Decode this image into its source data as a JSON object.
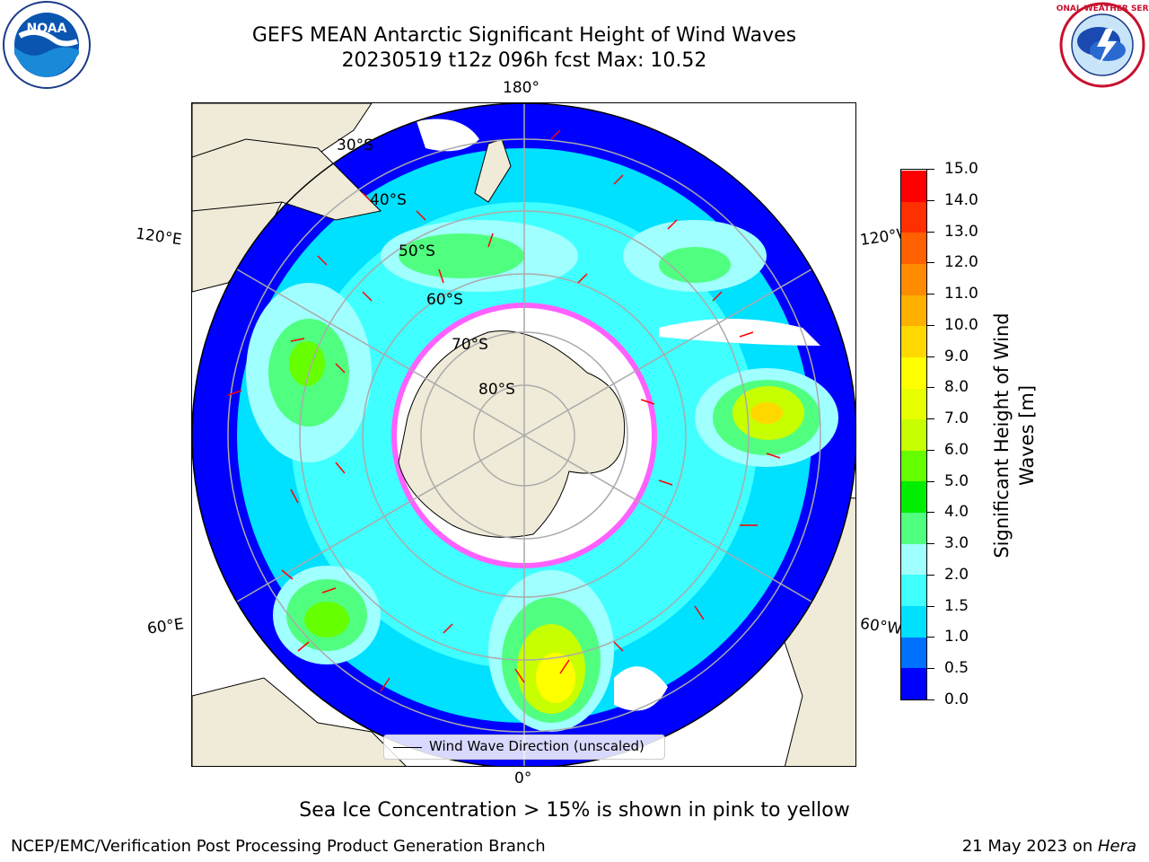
{
  "title": {
    "line1": "GEFS MEAN Antarctic Significant Height of Wind Waves",
    "line2": "20230519 t12z 096h fcst   Max: 10.52"
  },
  "logos": {
    "left": "NOAA",
    "right": "National Weather Service"
  },
  "map": {
    "projection": "south-polar-stereographic",
    "lon_labels": {
      "top": "180°",
      "bottom": "0°",
      "left_upper": "120°E",
      "left_lower": "60°E",
      "right_upper": "120°W",
      "right_lower": "60°W"
    },
    "lat_labels": [
      "30°S",
      "40°S",
      "50°S",
      "60°S",
      "70°S",
      "80°S"
    ],
    "legend": "Wind Wave Direction (unscaled)"
  },
  "colorbar": {
    "label": "Significant Height of Wind Waves [m]",
    "label_line1": "Significant Height of Wind",
    "label_line2": "Waves [m]",
    "ticks": [
      "0.0",
      "0.5",
      "1.0",
      "1.5",
      "2.0",
      "3.0",
      "4.0",
      "5.0",
      "6.0",
      "7.0",
      "8.0",
      "9.0",
      "10.0",
      "11.0",
      "12.0",
      "13.0",
      "14.0",
      "15.0"
    ],
    "colors": [
      "#0000ff",
      "#0070ff",
      "#00e0ff",
      "#40ffff",
      "#a0ffff",
      "#50ff80",
      "#00ee00",
      "#66ff00",
      "#c8ff00",
      "#e8ff00",
      "#ffff00",
      "#ffd800",
      "#ffb000",
      "#ff8c00",
      "#ff6000",
      "#ff3000",
      "#ff0000"
    ]
  },
  "note": "Sea Ice Concentration > 15% is shown in pink to yellow",
  "footer": {
    "left": "NCEP/EMC/Verification Post Processing Product Generation Branch",
    "right_prefix": "21 May 2023 on ",
    "right_host": "Hera"
  }
}
